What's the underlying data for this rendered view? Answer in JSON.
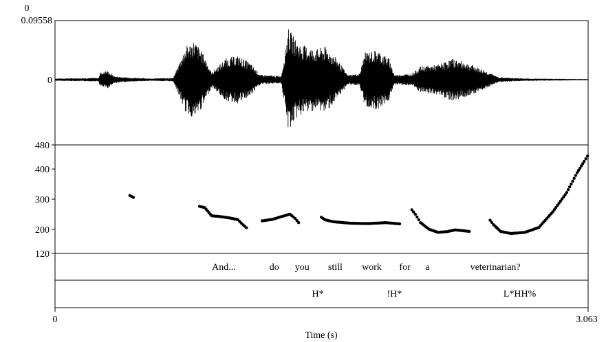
{
  "chart_data": {
    "type": "praat_waveform_pitch_textgrid",
    "time_axis": {
      "label": "Time (s)",
      "start_label": "0",
      "end_label": "3.063",
      "range": [
        0,
        3.063
      ]
    },
    "waveform": {
      "top_tick_labels": [
        "0",
        "0.09558"
      ],
      "zero_label": "0",
      "ylim": [
        -0.09558,
        0.09558
      ],
      "envelope": [
        [
          0.0,
          0.002
        ],
        [
          0.25,
          0.003
        ],
        [
          0.26,
          0.012
        ],
        [
          0.3,
          0.015
        ],
        [
          0.34,
          0.006
        ],
        [
          0.4,
          0.004
        ],
        [
          0.55,
          0.002
        ],
        [
          0.68,
          0.003
        ],
        [
          0.75,
          0.055
        ],
        [
          0.8,
          0.065
        ],
        [
          0.85,
          0.045
        ],
        [
          0.9,
          0.012
        ],
        [
          0.98,
          0.035
        ],
        [
          1.05,
          0.04
        ],
        [
          1.12,
          0.028
        ],
        [
          1.18,
          0.008
        ],
        [
          1.3,
          0.006
        ],
        [
          1.34,
          0.085
        ],
        [
          1.4,
          0.06
        ],
        [
          1.5,
          0.05
        ],
        [
          1.55,
          0.055
        ],
        [
          1.62,
          0.035
        ],
        [
          1.68,
          0.008
        ],
        [
          1.75,
          0.01
        ],
        [
          1.78,
          0.045
        ],
        [
          1.85,
          0.05
        ],
        [
          1.92,
          0.035
        ],
        [
          1.95,
          0.008
        ],
        [
          2.05,
          0.01
        ],
        [
          2.1,
          0.022
        ],
        [
          2.2,
          0.025
        ],
        [
          2.28,
          0.035
        ],
        [
          2.35,
          0.03
        ],
        [
          2.45,
          0.018
        ],
        [
          2.55,
          0.004
        ],
        [
          2.7,
          0.002
        ],
        [
          3.063,
          0.001
        ]
      ]
    },
    "pitch": {
      "unit": "Hz",
      "ylim": [
        120,
        480
      ],
      "tick_labels": [
        "480",
        "400",
        "300",
        "200",
        "120"
      ],
      "tick_values": [
        480,
        400,
        300,
        200,
        120
      ],
      "segments": [
        {
          "x": [
            0.43,
            0.45
          ],
          "y": [
            312,
            306
          ]
        },
        {
          "x": [
            0.83,
            0.86,
            0.9,
            0.95,
            1.0,
            1.05,
            1.08,
            1.1
          ],
          "y": [
            276,
            272,
            245,
            242,
            238,
            232,
            215,
            205
          ]
        },
        {
          "x": [
            1.19,
            1.25,
            1.3,
            1.35,
            1.38,
            1.4
          ],
          "y": [
            228,
            233,
            242,
            250,
            236,
            222
          ]
        },
        {
          "x": [
            1.53,
            1.55,
            1.6,
            1.7,
            1.8,
            1.9,
            1.98
          ],
          "y": [
            240,
            232,
            225,
            220,
            219,
            222,
            218
          ]
        },
        {
          "x": [
            2.05,
            2.07,
            2.1,
            2.15,
            2.2,
            2.25,
            2.3,
            2.38
          ],
          "y": [
            265,
            250,
            222,
            200,
            190,
            192,
            198,
            193
          ]
        },
        {
          "x": [
            2.5,
            2.52,
            2.56,
            2.62,
            2.7,
            2.78,
            2.86,
            2.94,
            3.0,
            3.04,
            3.06
          ],
          "y": [
            230,
            215,
            193,
            186,
            190,
            206,
            258,
            322,
            388,
            425,
            443
          ]
        }
      ]
    },
    "tiers": [
      {
        "name": "words",
        "labels": [
          {
            "text": "And...",
            "t": 0.97
          },
          {
            "text": "do",
            "t": 1.26
          },
          {
            "text": "you",
            "t": 1.42
          },
          {
            "text": "still",
            "t": 1.61
          },
          {
            "text": "work",
            "t": 1.82
          },
          {
            "text": "for",
            "t": 2.01
          },
          {
            "text": "a",
            "t": 2.14
          },
          {
            "text": "veterinarian?",
            "t": 2.53
          }
        ]
      },
      {
        "name": "tones",
        "labels": [
          {
            "text": "H*",
            "t": 1.51
          },
          {
            "text": "!H*",
            "t": 1.95
          },
          {
            "text": "L*HH%",
            "t": 2.67
          }
        ]
      }
    ]
  }
}
